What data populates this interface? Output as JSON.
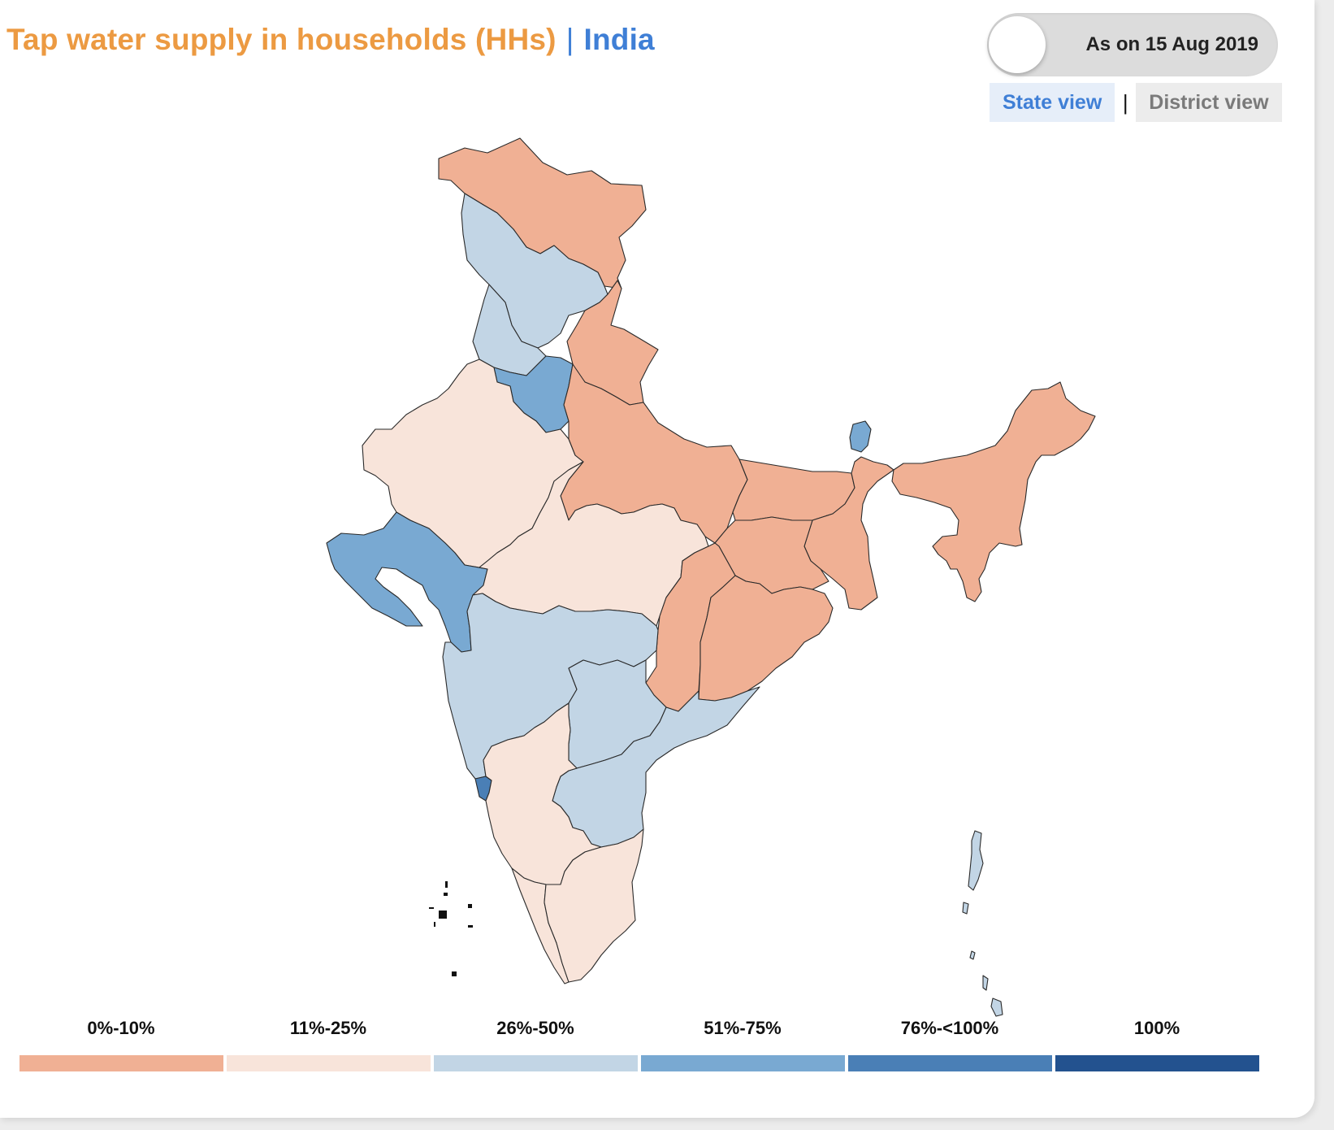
{
  "header": {
    "title": "Tap water supply in households (HHs)",
    "separator": "|",
    "region": "India"
  },
  "toggle": {
    "label": "As on 15 Aug 2019"
  },
  "views": {
    "state": "State view",
    "separator": "|",
    "district": "District view"
  },
  "legend": [
    {
      "label": "0%-10%",
      "color": "#f0b094"
    },
    {
      "label": "11%-25%",
      "color": "#f8e4da"
    },
    {
      "label": "26%-50%",
      "color": "#c2d5e5"
    },
    {
      "label": "51%-75%",
      "color": "#79a9d2"
    },
    {
      "label": "76%-<100%",
      "color": "#4a7fb6"
    },
    {
      "label": "100%",
      "color": "#23528f"
    }
  ]
}
